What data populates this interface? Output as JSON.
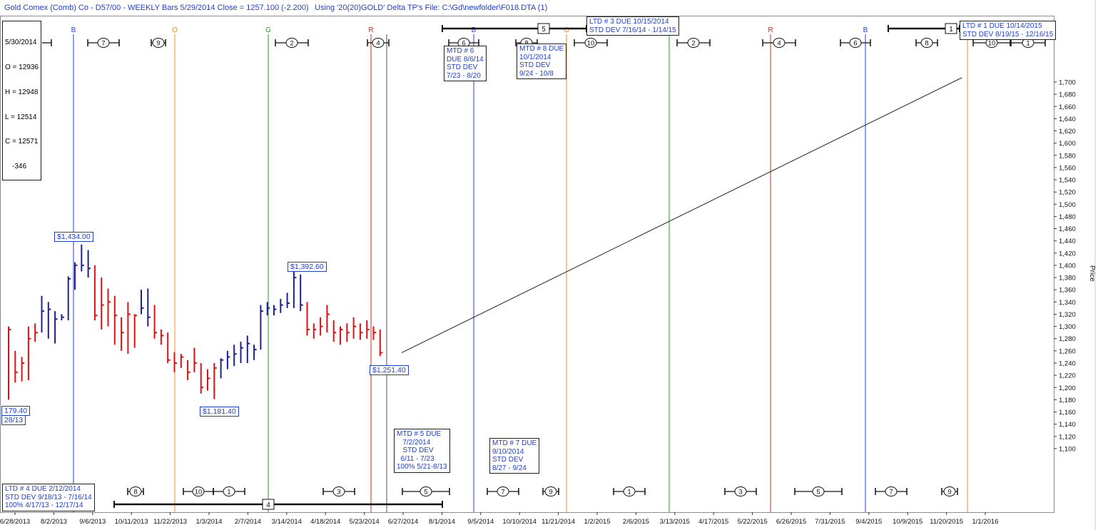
{
  "header": {
    "title": "Gold Comex (Comb) Co - D57/00  - WEEKLY Bars  5/29/2014 Close = 1257.100 (-2.200)",
    "using": "Using '20(20)GOLD' Delta TP's   File: C:\\Gd\\newfolder\\F018.DTA (1)"
  },
  "ohlc_box": {
    "date": "5/30/2014",
    "open": "O = 12936",
    "high": "H = 12948",
    "low": "L = 12514",
    "close": "C = 12571",
    "change": "-346"
  },
  "colors": {
    "up": "#1f1f8f",
    "down": "#e01010",
    "blue_line": "#2040d0",
    "orange_line": "#f08c1e",
    "green_line": "#2a9a2a",
    "red_line": "#e02020"
  },
  "chart_data": {
    "type": "bar",
    "subtype": "ohlc-weekly",
    "ylabel": "Price",
    "ylim": [
      1100,
      1700
    ],
    "y_ticks": [
      "1,700",
      "1,680",
      "1,660",
      "1,640",
      "1,620",
      "1,600",
      "1,580",
      "1,560",
      "1,540",
      "1,520",
      "1,500",
      "1,480",
      "1,460",
      "1,440",
      "1,420",
      "1,400",
      "1,380",
      "1,360",
      "1,340",
      "1,320",
      "1,300",
      "1,280",
      "1,260",
      "1,240",
      "1,220",
      "1,200",
      "1,180",
      "1,160",
      "1,140",
      "1,120",
      "1,100"
    ],
    "x_tick_labels": [
      "6/28/2013",
      "8/2/2013",
      "9/6/2013",
      "10/11/2013",
      "11/22/2013",
      "1/3/2014",
      "2/7/2014",
      "3/14/2014",
      "4/18/2014",
      "5/23/2014",
      "6/27/2014",
      "8/1/2014",
      "9/5/2014",
      "10/10/2014",
      "11/21/2014",
      "1/2/2015",
      "2/6/2015",
      "3/13/2015",
      "4/17/2015",
      "5/22/2015",
      "6/26/2015",
      "7/31/2015",
      "9/4/2015",
      "10/9/2015",
      "11/20/2015",
      "1/1/2016"
    ],
    "bars": [
      {
        "h": 1300,
        "l": 1180,
        "c": 1295,
        "dir": "down"
      },
      {
        "h": 1260,
        "l": 1208,
        "c": 1225,
        "dir": "down"
      },
      {
        "h": 1250,
        "l": 1210,
        "c": 1240,
        "dir": "down"
      },
      {
        "h": 1300,
        "l": 1212,
        "c": 1280,
        "dir": "down"
      },
      {
        "h": 1305,
        "l": 1275,
        "c": 1290,
        "dir": "down"
      },
      {
        "h": 1350,
        "l": 1290,
        "c": 1325,
        "dir": "up"
      },
      {
        "h": 1340,
        "l": 1280,
        "c": 1328,
        "dir": "up"
      },
      {
        "h": 1325,
        "l": 1272,
        "c": 1312,
        "dir": "up"
      },
      {
        "h": 1320,
        "l": 1310,
        "c": 1315,
        "dir": "up"
      },
      {
        "h": 1382,
        "l": 1310,
        "c": 1378,
        "dir": "up"
      },
      {
        "h": 1405,
        "l": 1360,
        "c": 1400,
        "dir": "up"
      },
      {
        "h": 1434,
        "l": 1390,
        "c": 1400,
        "dir": "up"
      },
      {
        "h": 1425,
        "l": 1380,
        "c": 1395,
        "dir": "up"
      },
      {
        "h": 1400,
        "l": 1310,
        "c": 1318,
        "dir": "down"
      },
      {
        "h": 1380,
        "l": 1295,
        "c": 1335,
        "dir": "down"
      },
      {
        "h": 1362,
        "l": 1300,
        "c": 1340,
        "dir": "down"
      },
      {
        "h": 1350,
        "l": 1270,
        "c": 1318,
        "dir": "down"
      },
      {
        "h": 1315,
        "l": 1260,
        "c": 1290,
        "dir": "down"
      },
      {
        "h": 1340,
        "l": 1255,
        "c": 1320,
        "dir": "down"
      },
      {
        "h": 1320,
        "l": 1265,
        "c": 1318,
        "dir": "down"
      },
      {
        "h": 1360,
        "l": 1320,
        "c": 1330,
        "dir": "up"
      },
      {
        "h": 1362,
        "l": 1300,
        "c": 1315,
        "dir": "up"
      },
      {
        "h": 1335,
        "l": 1280,
        "c": 1290,
        "dir": "down"
      },
      {
        "h": 1295,
        "l": 1270,
        "c": 1285,
        "dir": "down"
      },
      {
        "h": 1290,
        "l": 1240,
        "c": 1245,
        "dir": "down"
      },
      {
        "h": 1258,
        "l": 1225,
        "c": 1240,
        "dir": "down"
      },
      {
        "h": 1255,
        "l": 1232,
        "c": 1250,
        "dir": "down"
      },
      {
        "h": 1245,
        "l": 1212,
        "c": 1225,
        "dir": "down"
      },
      {
        "h": 1265,
        "l": 1225,
        "c": 1240,
        "dir": "down"
      },
      {
        "h": 1240,
        "l": 1190,
        "c": 1200,
        "dir": "down"
      },
      {
        "h": 1230,
        "l": 1195,
        "c": 1215,
        "dir": "down"
      },
      {
        "h": 1240,
        "l": 1181,
        "c": 1232,
        "dir": "down"
      },
      {
        "h": 1248,
        "l": 1215,
        "c": 1245,
        "dir": "up"
      },
      {
        "h": 1260,
        "l": 1230,
        "c": 1250,
        "dir": "up"
      },
      {
        "h": 1270,
        "l": 1235,
        "c": 1255,
        "dir": "up"
      },
      {
        "h": 1275,
        "l": 1240,
        "c": 1265,
        "dir": "up"
      },
      {
        "h": 1285,
        "l": 1240,
        "c": 1272,
        "dir": "up"
      },
      {
        "h": 1270,
        "l": 1245,
        "c": 1262,
        "dir": "up"
      },
      {
        "h": 1335,
        "l": 1262,
        "c": 1325,
        "dir": "up"
      },
      {
        "h": 1340,
        "l": 1318,
        "c": 1330,
        "dir": "up"
      },
      {
        "h": 1335,
        "l": 1318,
        "c": 1328,
        "dir": "up"
      },
      {
        "h": 1345,
        "l": 1322,
        "c": 1335,
        "dir": "up"
      },
      {
        "h": 1355,
        "l": 1330,
        "c": 1338,
        "dir": "up"
      },
      {
        "h": 1392.6,
        "l": 1330,
        "c": 1380,
        "dir": "up"
      },
      {
        "h": 1385,
        "l": 1325,
        "c": 1335,
        "dir": "up"
      },
      {
        "h": 1340,
        "l": 1285,
        "c": 1295,
        "dir": "down"
      },
      {
        "h": 1305,
        "l": 1280,
        "c": 1295,
        "dir": "down"
      },
      {
        "h": 1315,
        "l": 1285,
        "c": 1300,
        "dir": "down"
      },
      {
        "h": 1335,
        "l": 1290,
        "c": 1320,
        "dir": "down"
      },
      {
        "h": 1310,
        "l": 1275,
        "c": 1290,
        "dir": "down"
      },
      {
        "h": 1300,
        "l": 1270,
        "c": 1295,
        "dir": "down"
      },
      {
        "h": 1305,
        "l": 1275,
        "c": 1290,
        "dir": "down"
      },
      {
        "h": 1315,
        "l": 1280,
        "c": 1300,
        "dir": "down"
      },
      {
        "h": 1305,
        "l": 1278,
        "c": 1290,
        "dir": "down"
      },
      {
        "h": 1310,
        "l": 1280,
        "c": 1295,
        "dir": "down"
      },
      {
        "h": 1300,
        "l": 1278,
        "c": 1290,
        "dir": "down"
      },
      {
        "h": 1295,
        "l": 1251.4,
        "c": 1257,
        "dir": "down"
      }
    ],
    "price_labels": [
      {
        "text": "$1,434.00",
        "price": 1434
      },
      {
        "text": "$1,392.60",
        "price": 1392.6
      },
      {
        "text": "$1,181.40",
        "price": 1181.4
      },
      {
        "text": "$1,251.40",
        "price": 1251.4
      },
      {
        "text": "179.40",
        "price": 1179.4
      },
      {
        "text": "28/13",
        "price": 1179.4
      }
    ],
    "trend_line": {
      "from_price": 1257,
      "to_price": 1707
    },
    "cycle_lines": [
      {
        "label": "B",
        "color": "blue"
      },
      {
        "label": "O",
        "color": "orange"
      },
      {
        "label": "G",
        "color": "green"
      },
      {
        "label": "R",
        "color": "red"
      },
      {
        "label": "B",
        "color": "blue"
      },
      {
        "label": "O",
        "color": "orange"
      },
      {
        "label": "G",
        "color": "green"
      },
      {
        "label": "R",
        "color": "red"
      },
      {
        "label": "B",
        "color": "blue"
      },
      {
        "label": "O",
        "color": "orange"
      }
    ],
    "top_markers": [
      "7",
      "9",
      "2",
      "4",
      "6",
      "8",
      "10",
      "2",
      "4",
      "6",
      "8",
      "10",
      "1"
    ],
    "bottom_markers": [
      "8",
      "10",
      "1",
      "3",
      "5",
      "7",
      "9",
      "1",
      "3",
      "5",
      "7",
      "9"
    ],
    "range_markers": [
      "5",
      "1",
      "4"
    ]
  },
  "annotations": [
    {
      "id": "mtd6",
      "text": "MTD # 6\nDUE 8/6/14\nSTD DEV\n7/23 - 8/20"
    },
    {
      "id": "mtd8",
      "text": "MTD # 8 DUE\n10/1/2014\nSTD DEV\n9/24 - 10/8"
    },
    {
      "id": "ltd3",
      "text": "LTD # 3 DUE 10/15/2014\nSTD DEV 7/16/14 - 1/14/15"
    },
    {
      "id": "ltd1",
      "text": "LTD # 1 DUE 10/14/2015\nSTD DEV 8/19/15 - 12/16/15"
    },
    {
      "id": "mtd5",
      "text": "MTD # 5 DUE\n   7/2/2014\n   STD DEV\n  6/11 - 7/23\n100% 5/21-8/13"
    },
    {
      "id": "mtd7",
      "text": "MTD # 7 DUE\n9/10/2014\nSTD DEV\n8/27 - 9/24"
    },
    {
      "id": "ltd4",
      "text": "LTD # 4 DUE 2/12/2014\nSTD DEV 9/18/13 - 7/16/14\n100% 4/17/13 - 12/17/14"
    }
  ]
}
